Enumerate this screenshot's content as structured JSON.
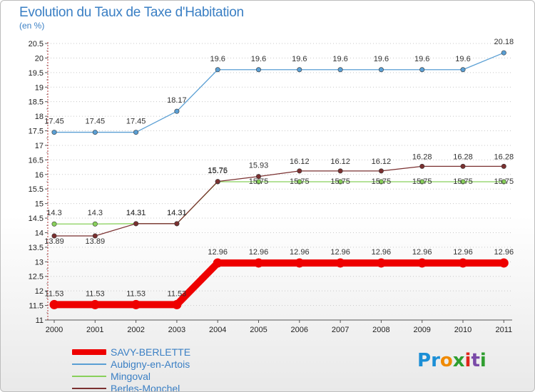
{
  "header": {
    "title": "Evolution du Taux de Taxe d'Habitation",
    "subtitle": "(en %)"
  },
  "logo": {
    "text": "Proxiti",
    "letters": [
      {
        "ch": "P",
        "color": "#1c8fd6"
      },
      {
        "ch": "r",
        "color": "#1c8fd6"
      },
      {
        "ch": "o",
        "color": "#f08a00"
      },
      {
        "ch": "x",
        "color": "#2f9e2f"
      },
      {
        "ch": "i",
        "color": "#e0261b"
      },
      {
        "ch": "t",
        "color": "#7a4aa8"
      },
      {
        "ch": "i",
        "color": "#2f9e2f"
      }
    ]
  },
  "chart_data": {
    "type": "line",
    "title": "Evolution du Taux de Taxe d'Habitation",
    "subtitle": "(en %)",
    "xlabel": "",
    "ylabel": "",
    "x": [
      "2000",
      "2001",
      "2002",
      "2003",
      "2004",
      "2005",
      "2006",
      "2007",
      "2008",
      "2009",
      "2010",
      "2011"
    ],
    "ylim": [
      11,
      20.5
    ],
    "yticks": [
      "11",
      "11.5",
      "12",
      "12.5",
      "13",
      "13.5",
      "14",
      "14.5",
      "15",
      "15.5",
      "16",
      "16.5",
      "17",
      "17.5",
      "18",
      "18.5",
      "19",
      "19.5",
      "20",
      "20.5"
    ],
    "grid": "horizontal dotted",
    "legend_position": "bottom-left",
    "series": [
      {
        "name": "SAVY-BERLETTE",
        "color": "#ee0000",
        "emphasis": "thick",
        "values": [
          11.53,
          11.53,
          11.53,
          11.53,
          12.96,
          12.96,
          12.96,
          12.96,
          12.96,
          12.96,
          12.96,
          12.96
        ],
        "labels": [
          "11.53",
          "11.53",
          "11.53",
          "11.53",
          "12.96",
          "12.96",
          "12.96",
          "12.96",
          "12.96",
          "12.96",
          "12.96",
          "12.96"
        ]
      },
      {
        "name": "Aubigny-en-Artois",
        "color": "#5a9fd4",
        "values": [
          17.45,
          17.45,
          17.45,
          18.17,
          19.6,
          19.6,
          19.6,
          19.6,
          19.6,
          19.6,
          19.6,
          20.18
        ],
        "labels": [
          "17.45",
          "17.45",
          "17.45",
          "18.17",
          "19.6",
          "19.6",
          "19.6",
          "19.6",
          "19.6",
          "19.6",
          "19.6",
          "20.18"
        ]
      },
      {
        "name": "Mingoval",
        "color": "#88d05a",
        "values": [
          14.3,
          14.3,
          14.31,
          14.31,
          15.75,
          15.75,
          15.75,
          15.75,
          15.75,
          15.75,
          15.75,
          15.75
        ],
        "labels": [
          "14.3",
          "14.3",
          "14.31",
          "14.31",
          "15.75",
          "15.75",
          "15.75",
          "15.75",
          "15.75",
          "15.75",
          "15.75",
          "15.75"
        ]
      },
      {
        "name": "Berles-Monchel",
        "color": "#7a3030",
        "values": [
          13.89,
          13.89,
          14.31,
          14.31,
          15.76,
          15.93,
          16.12,
          16.12,
          16.12,
          16.28,
          16.28,
          16.28
        ],
        "labels": [
          "13.89",
          "13.89",
          "14.31",
          "14.31",
          "15.76",
          "15.93",
          "16.12",
          "16.12",
          "16.12",
          "16.28",
          "16.28",
          "16.28"
        ]
      }
    ]
  }
}
